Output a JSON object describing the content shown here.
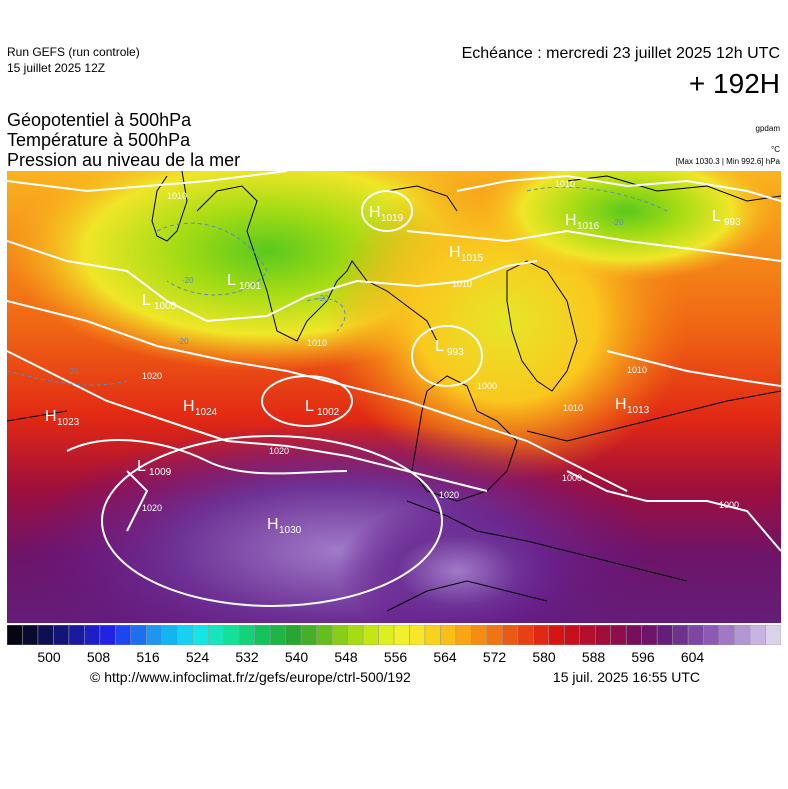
{
  "header": {
    "run_title": "Run GEFS (run controle)",
    "run_date": "15 juillet 2025 12Z",
    "echeance": "Echéance : mercredi 23 juillet 2025 12h UTC",
    "lead_time": "+ 192H"
  },
  "fields": {
    "geopotential": "Géopotentiel à 500hPa",
    "temperature": "Température à 500hPa",
    "pressure": "Pression au niveau de la mer"
  },
  "units": {
    "geopotential": "gpdam",
    "temperature": "°C",
    "pressure_extremes": "[Max 1030.3 | Min 992.6] hPa"
  },
  "map": {
    "pressure_centers": [
      {
        "type": "H",
        "value": "1019"
      },
      {
        "type": "H",
        "value": "1016"
      },
      {
        "type": "L",
        "value": "993"
      },
      {
        "type": "H",
        "value": "1015"
      },
      {
        "type": "L",
        "value": "1001"
      },
      {
        "type": "L",
        "value": "1000"
      },
      {
        "type": "L",
        "value": "993"
      },
      {
        "type": "H",
        "value": "1023"
      },
      {
        "type": "H",
        "value": "1024"
      },
      {
        "type": "L",
        "value": "1002"
      },
      {
        "type": "H",
        "value": "1013"
      },
      {
        "type": "L",
        "value": "1009"
      },
      {
        "type": "H",
        "value": "1030"
      }
    ],
    "isobar_labels": [
      "1010",
      "1010",
      "1010",
      "1010",
      "1020",
      "1020",
      "1020",
      "1020",
      "1010",
      "1010",
      "1000",
      "1000",
      "1000"
    ],
    "temperature_labels": [
      "-20",
      "-20",
      "-20",
      "-20",
      "-20"
    ]
  },
  "colorbar": {
    "ticks": [
      "500",
      "508",
      "516",
      "524",
      "532",
      "540",
      "548",
      "556",
      "564",
      "572",
      "580",
      "588",
      "596",
      "604"
    ],
    "colors": [
      "#050514",
      "#0a0a2e",
      "#0e0e52",
      "#141478",
      "#1a1aa0",
      "#1e1ec8",
      "#2222e6",
      "#1e46f0",
      "#1e6ef0",
      "#1e96f0",
      "#14b4f0",
      "#14d2f0",
      "#14e6e6",
      "#14e6be",
      "#14e196",
      "#14d278",
      "#14c35a",
      "#1eb446",
      "#28a532",
      "#46af28",
      "#64be1e",
      "#87cd19",
      "#a5dc14",
      "#c3e614",
      "#dcf01e",
      "#f0f02d",
      "#fae628",
      "#fad21e",
      "#fabe19",
      "#faa514",
      "#f58c14",
      "#f07314",
      "#eb5a14",
      "#e64114",
      "#e12814",
      "#d71414",
      "#c80f1e",
      "#b40f2d",
      "#a00f3c",
      "#8c0f4b",
      "#780f5a",
      "#6e1469",
      "#641e78",
      "#6e328c",
      "#7d46a0",
      "#8c5ab4",
      "#a078c3",
      "#b496d2",
      "#c8b4e1",
      "#dcd2eb"
    ]
  },
  "footer": {
    "source": "© http://www.infoclimat.fr/z/gefs/europe/ctrl-500/192",
    "generated": "15 juil. 2025 16:55 UTC"
  }
}
